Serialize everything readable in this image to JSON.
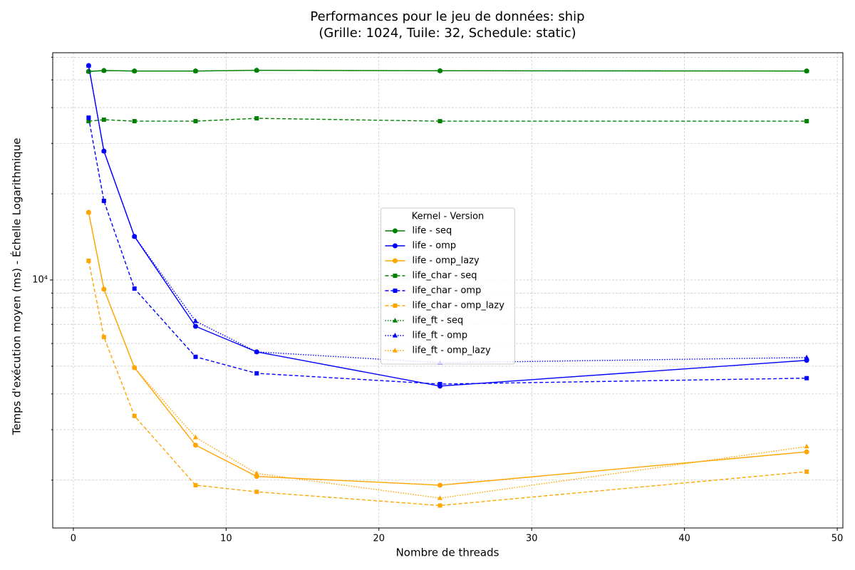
{
  "chart_data": {
    "type": "line",
    "title": "Performances pour le jeu de données: ship",
    "subtitle": "(Grille: 1024, Tuile: 32, Schedule: static)",
    "x_label": "Nombre de threads",
    "y_label": "Temps d'exécution moyen (ms) - Échelle Logarithmique",
    "legend_title": "Kernel - Version",
    "legend": "center",
    "log_y": true,
    "grid": true,
    "x": [
      1,
      2,
      4,
      8,
      12,
      24,
      48
    ],
    "xlim": [
      -1.35,
      50.37
    ],
    "xticks": [
      0,
      10,
      20,
      30,
      40,
      50
    ],
    "ylim": [
      1361,
      62200
    ],
    "yticks": [
      {
        "value": 10000,
        "label": "10⁴"
      }
    ],
    "yminorticks": [
      2000,
      3000,
      4000,
      5000,
      6000,
      7000,
      8000,
      9000,
      20000,
      30000,
      40000,
      50000,
      60000
    ],
    "series": [
      {
        "name": "life - seq",
        "color": "green",
        "linestyle": "solid",
        "marker": "circle",
        "values": [
          53500,
          53900,
          53700,
          53700,
          54000,
          53800,
          53700
        ]
      },
      {
        "name": "life - omp",
        "color": "blue",
        "linestyle": "solid",
        "marker": "circle",
        "values": [
          56100,
          28200,
          14190,
          6890,
          5610,
          4260,
          5240
        ]
      },
      {
        "name": "life - omp_lazy",
        "color": "orange",
        "linestyle": "solid",
        "marker": "circle",
        "values": [
          17230,
          9290,
          4940,
          2650,
          2060,
          1920,
          2510
        ]
      },
      {
        "name": "life_char - seq",
        "color": "green",
        "linestyle": "dashed",
        "marker": "square",
        "values": [
          35870,
          36300,
          35870,
          35870,
          36700,
          35870,
          35870
        ]
      },
      {
        "name": "life_char - omp",
        "color": "blue",
        "linestyle": "dashed",
        "marker": "square",
        "values": [
          36900,
          18890,
          9330,
          5390,
          4720,
          4330,
          4540
        ]
      },
      {
        "name": "life_char - omp_lazy",
        "color": "orange",
        "linestyle": "dashed",
        "marker": "square",
        "values": [
          11670,
          6320,
          3350,
          1920,
          1820,
          1630,
          2140
        ]
      },
      {
        "name": "life_ft - seq",
        "color": "green",
        "linestyle": "dotted",
        "marker": "triangle",
        "values": [
          53500,
          53900,
          53700,
          53700,
          54000,
          53800,
          53700
        ]
      },
      {
        "name": "life_ft - omp",
        "color": "blue",
        "linestyle": "dotted",
        "marker": "triangle",
        "values": [
          56000,
          28200,
          14190,
          7180,
          5610,
          5140,
          5360
        ]
      },
      {
        "name": "life_ft - omp_lazy",
        "color": "orange",
        "linestyle": "dotted",
        "marker": "triangle",
        "values": [
          17230,
          9290,
          4940,
          2820,
          2110,
          1730,
          2620
        ]
      }
    ]
  }
}
